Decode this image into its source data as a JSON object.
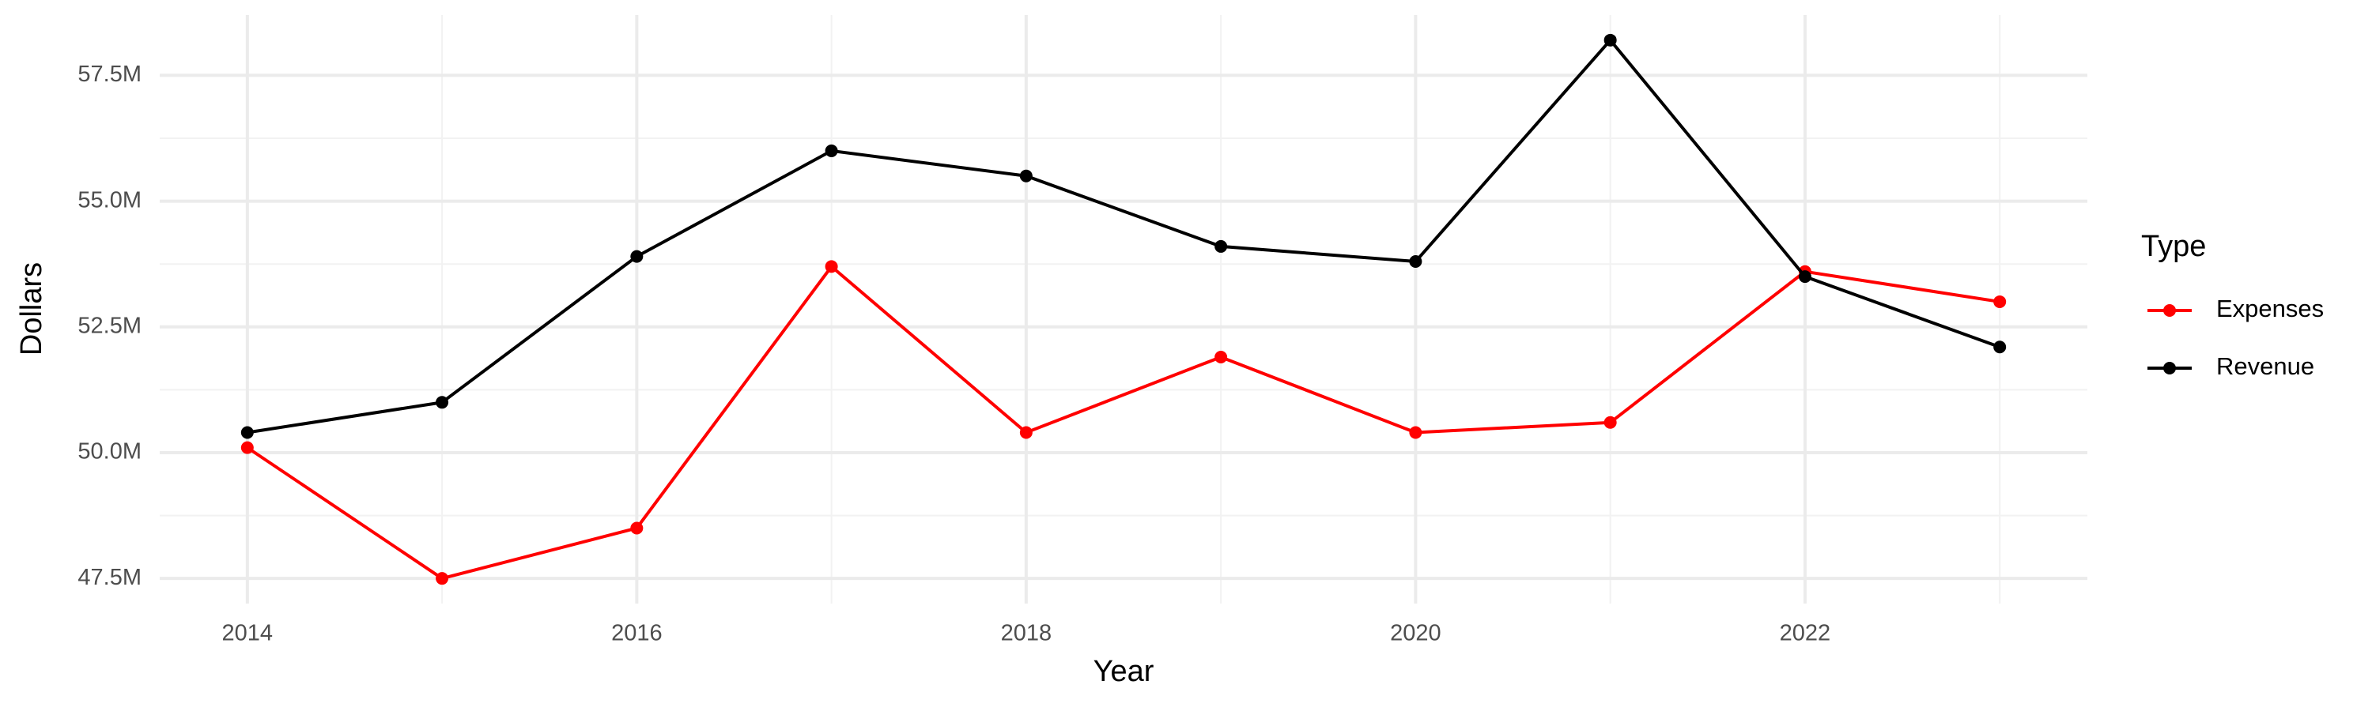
{
  "chart_data": {
    "type": "line",
    "x_label": "Year",
    "y_label": "Dollars",
    "x": [
      2014,
      2015,
      2016,
      2017,
      2018,
      2019,
      2020,
      2021,
      2022,
      2023
    ],
    "series": [
      {
        "name": "Expenses",
        "color": "#ff0000",
        "values": [
          50100000,
          47500000,
          48500000,
          53700000,
          50400000,
          51900000,
          50400000,
          50600000,
          53600000,
          53000000
        ]
      },
      {
        "name": "Revenue",
        "color": "#000000",
        "values": [
          50400000,
          51000000,
          53900000,
          56000000,
          55500000,
          54100000,
          53800000,
          58200000,
          53500000,
          52100000
        ]
      }
    ],
    "xlim": [
      2013.55,
      2023.45
    ],
    "xticks": [
      2014,
      2016,
      2018,
      2020,
      2022
    ],
    "xminor": [
      2015,
      2017,
      2019,
      2021,
      2023
    ],
    "ylim": [
      47000000,
      58700000
    ],
    "yticks": [
      {
        "value": 47500000,
        "label": "47.5M"
      },
      {
        "value": 50000000,
        "label": "50.0M"
      },
      {
        "value": 52500000,
        "label": "52.5M"
      },
      {
        "value": 55000000,
        "label": "55.0M"
      },
      {
        "value": 57500000,
        "label": "57.5M"
      }
    ],
    "yminor": [
      48750000,
      51250000,
      53750000,
      56250000
    ],
    "grid": true,
    "legend_title": "Type",
    "legend_position": "right"
  }
}
